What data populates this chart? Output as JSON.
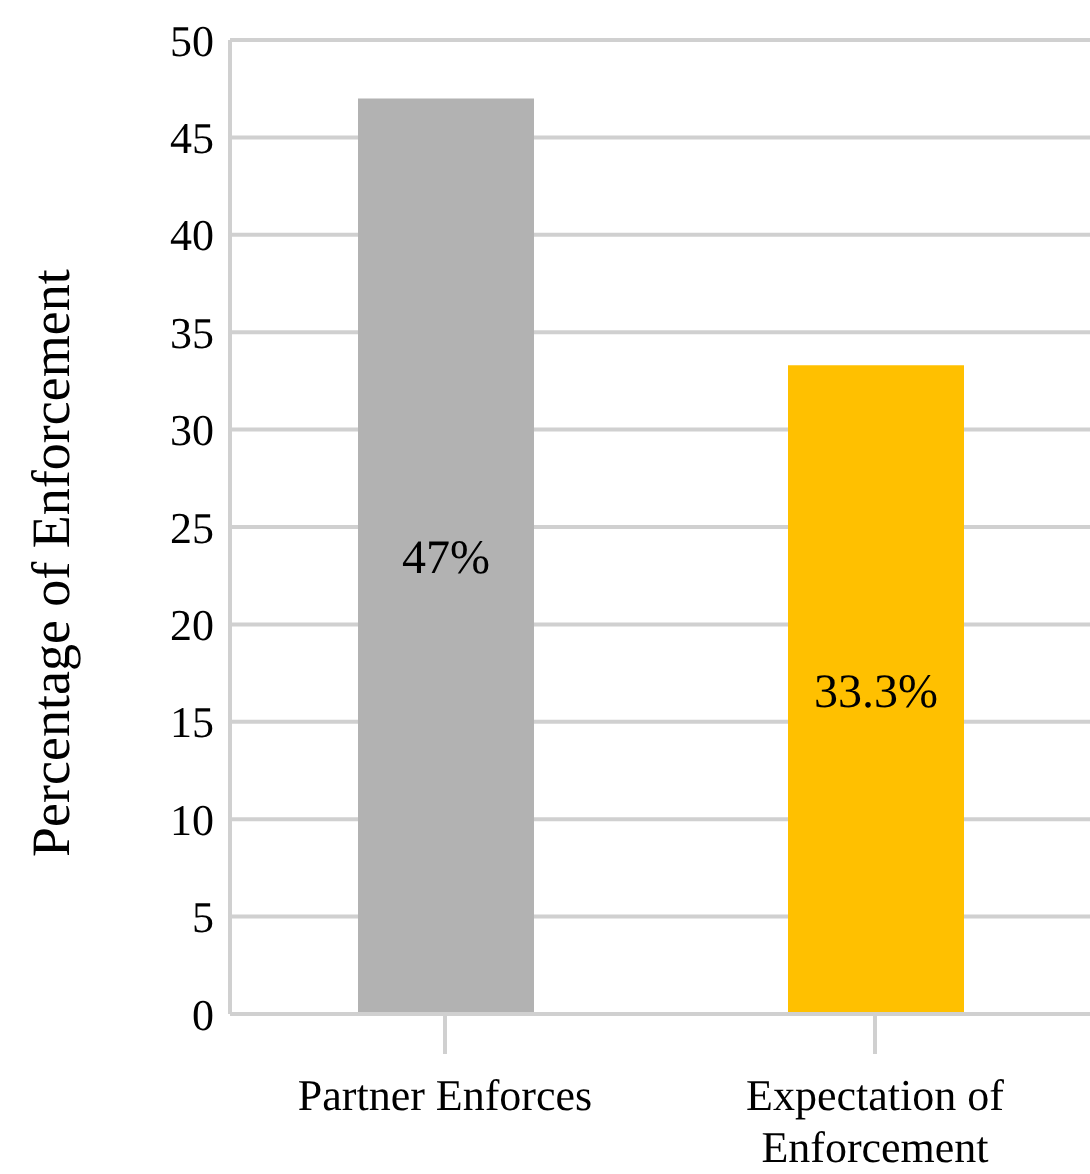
{
  "chart_data": {
    "type": "bar",
    "ylabel": "Percentage of Enforcement",
    "categories": [
      "Partner Enforces",
      "Expectation of Enforcement"
    ],
    "values": [
      47,
      33.3
    ],
    "colors": [
      "#b2b2b2",
      "#ffc000"
    ],
    "value_labels": [
      "47%",
      "33.3%"
    ],
    "ylim": [
      0,
      50
    ],
    "yticks": [
      0,
      5,
      10,
      15,
      20,
      25,
      30,
      35,
      40,
      45,
      50
    ],
    "grid": "y"
  }
}
